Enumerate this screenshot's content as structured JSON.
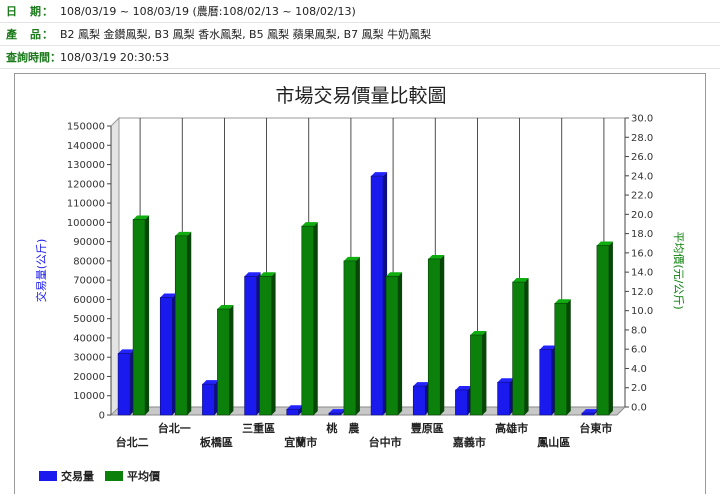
{
  "info": {
    "date_label": "日　期：",
    "date_value": "108/03/19 ~ 108/03/19 (農曆:108/02/13 ~ 108/02/13)",
    "product_label": "產　品：",
    "product_value": "B2 鳳梨 金鑽鳳梨, B3 鳳梨 香水鳳梨, B5 鳳梨 蘋果鳳梨, B7 鳳梨 牛奶鳳梨",
    "query_label": "查詢時間：",
    "query_value": "108/03/19 20:30:53"
  },
  "colors": {
    "volume": "#1a1aee",
    "price": "#0b800b",
    "accent_label": "#1b7a1b"
  },
  "chart_data": {
    "type": "bar",
    "title": "市場交易價量比較圖",
    "ylabel": "交易量(公斤)",
    "y2label": "平均價(元/公斤)",
    "ylim": [
      0,
      150000
    ],
    "y2lim": [
      0,
      30
    ],
    "yticks": [
      "0",
      "10000",
      "20000",
      "30000",
      "40000",
      "50000",
      "60000",
      "70000",
      "80000",
      "90000",
      "100000",
      "110000",
      "120000",
      "130000",
      "140000",
      "150000"
    ],
    "y2ticks": [
      "0.0",
      "2.0",
      "4.0",
      "6.0",
      "8.0",
      "10.0",
      "12.0",
      "14.0",
      "16.0",
      "18.0",
      "20.0",
      "22.0",
      "24.0",
      "26.0",
      "28.0",
      "30.0"
    ],
    "categories": [
      "台北二",
      "台北一",
      "板橋區",
      "三重區",
      "宜蘭市",
      "桃　農",
      "台中市",
      "豐原區",
      "嘉義市",
      "高雄市",
      "鳳山區",
      "台東市"
    ],
    "grid": true,
    "legend_position": "bottom-left",
    "series": [
      {
        "name": "交易量",
        "axis": "left",
        "values": [
          32000,
          61000,
          16000,
          72000,
          3000,
          1000,
          124000,
          15000,
          13000,
          17000,
          34000,
          1000
        ]
      },
      {
        "name": "平均價",
        "axis": "right",
        "values": [
          20.3,
          18.6,
          11.0,
          14.4,
          19.6,
          16.0,
          14.4,
          16.2,
          8.3,
          13.8,
          11.6,
          17.6
        ]
      }
    ]
  }
}
